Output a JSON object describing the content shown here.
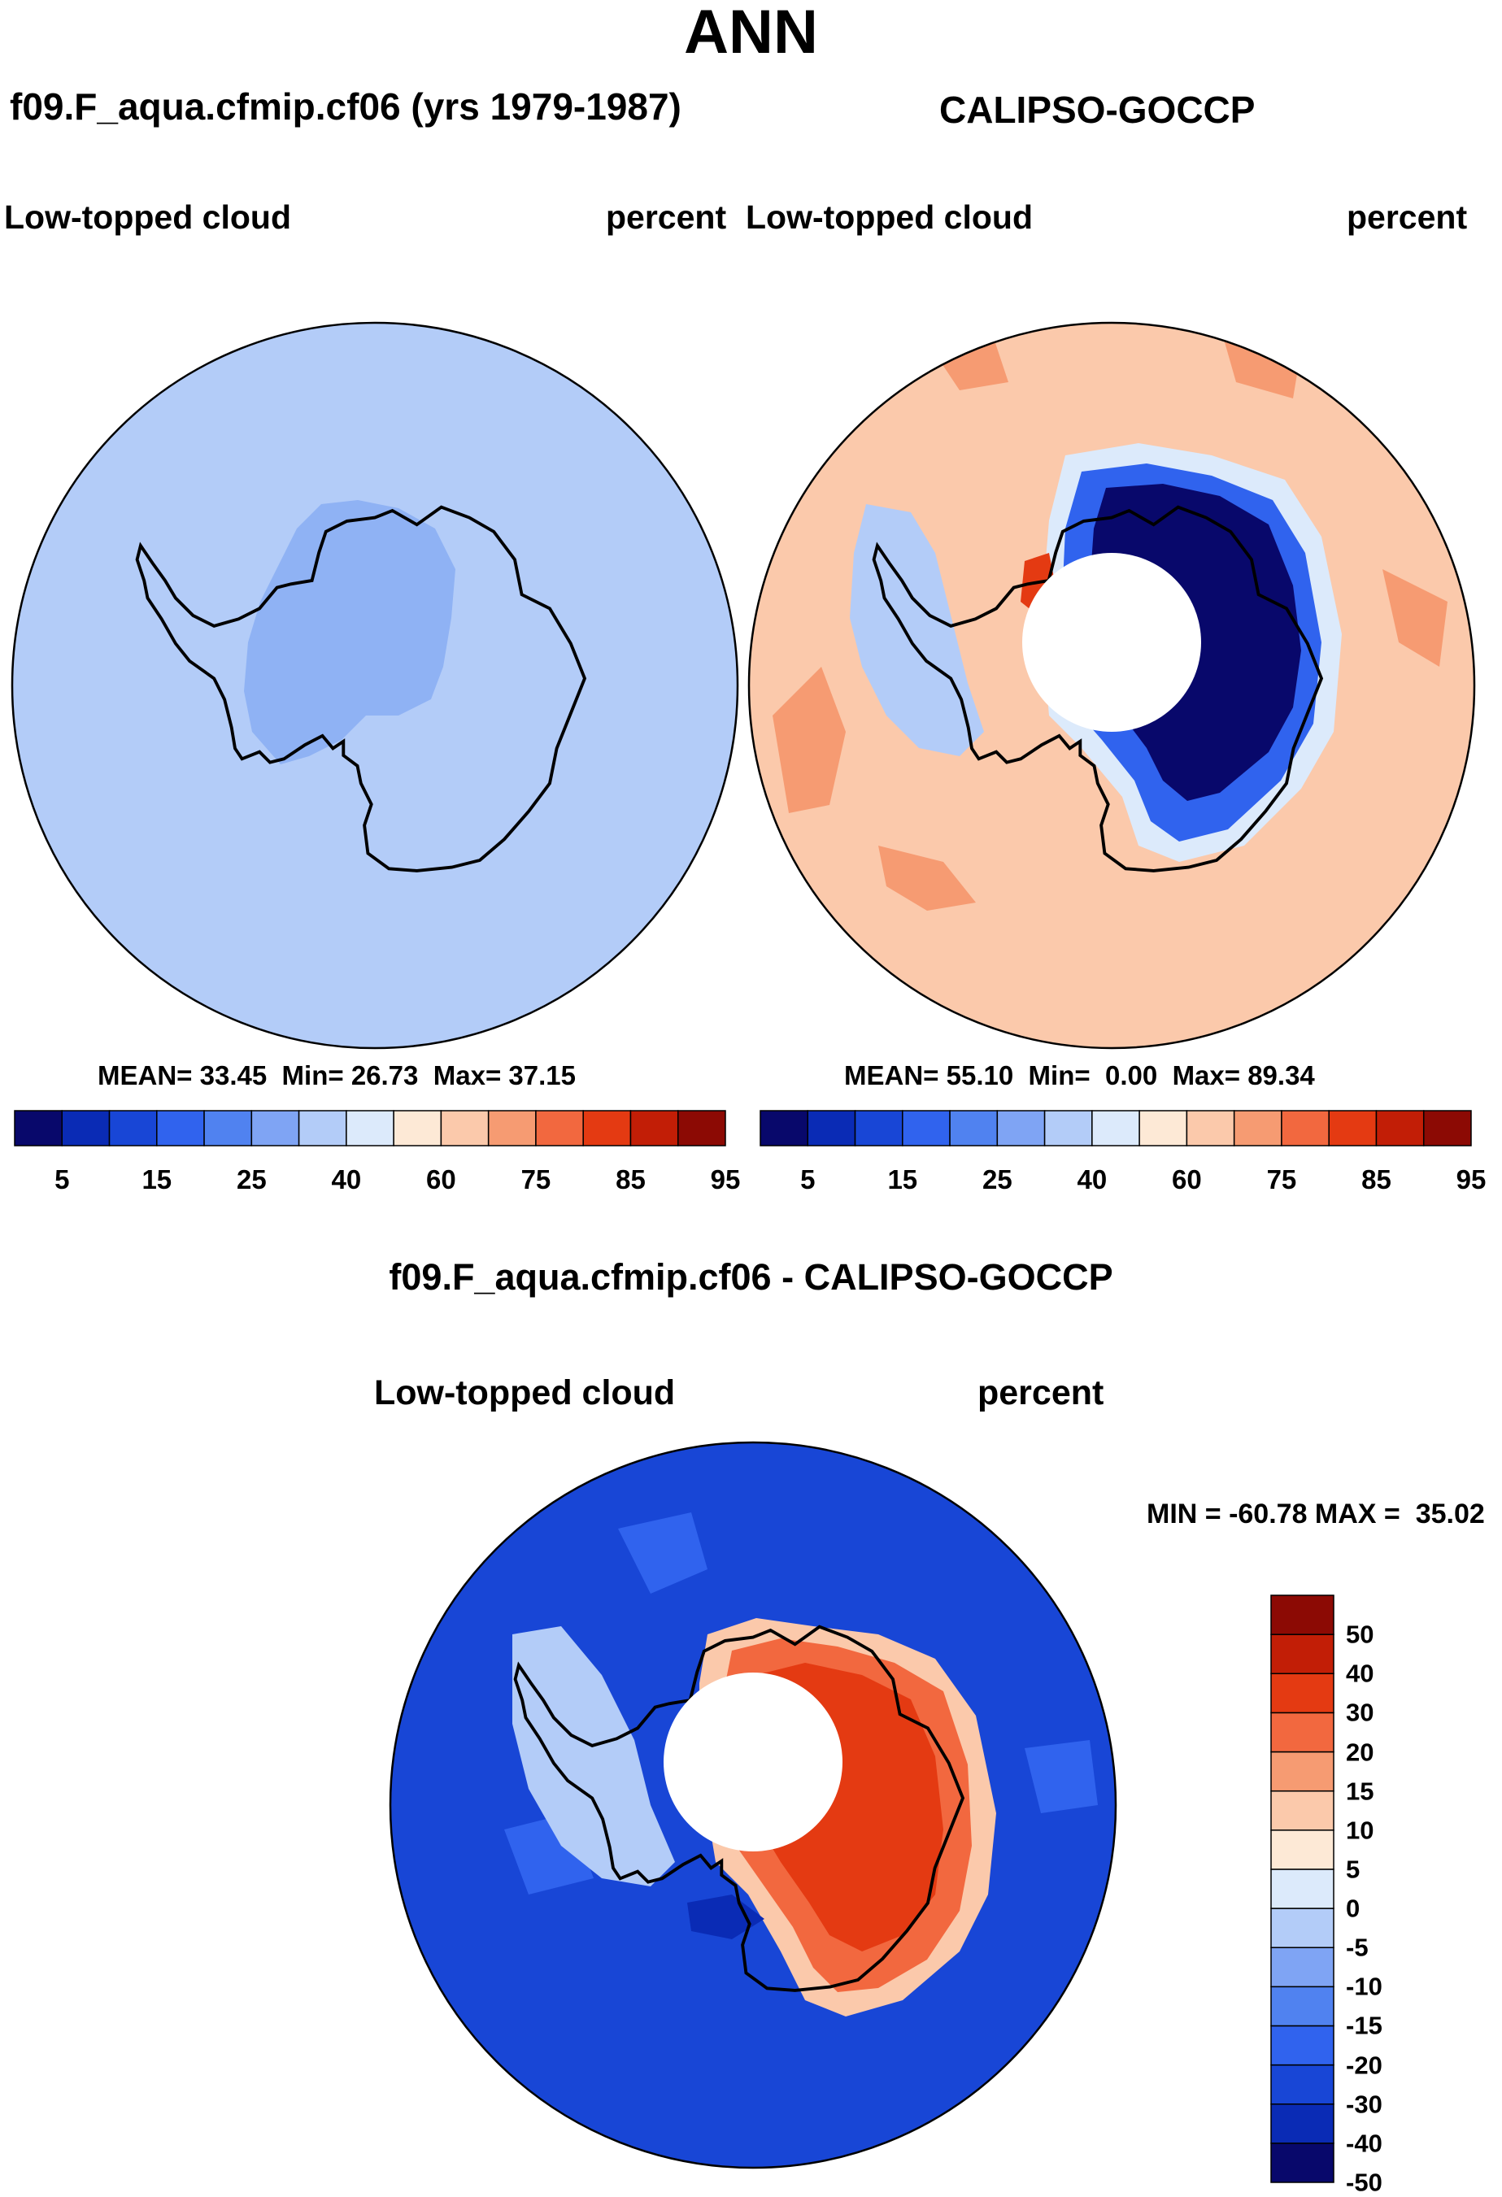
{
  "title": "ANN",
  "model_label": "f09.F_aqua.cfmip.cf06 (yrs 1979-1987)",
  "obs_label": "CALIPSO-GOCCP",
  "panels": {
    "model": {
      "variable": "Low-topped cloud",
      "units": "percent",
      "mean": "33.45",
      "min": "26.73",
      "max": "37.15"
    },
    "obs": {
      "variable": "Low-topped cloud",
      "units": "percent",
      "mean": "55.10",
      "min": "0.00",
      "max": "89.34"
    },
    "diff": {
      "title": "f09.F_aqua.cfmip.cf06 - CALIPSO-GOCCP",
      "variable": "Low-topped cloud",
      "units": "percent",
      "min": "-60.78",
      "max": "35.02"
    }
  },
  "stat_labels": {
    "mean": "MEAN=",
    "min": "Min=",
    "max": "Max="
  },
  "abs_colorbar": {
    "colors": [
      "#08086b",
      "#0a2bb5",
      "#1846d6",
      "#3063ee",
      "#5082f0",
      "#7fa4f4",
      "#b3ccf8",
      "#dceafb",
      "#fde9d6",
      "#fbc9ab",
      "#f69b72",
      "#f2683f",
      "#e43a12",
      "#c21e06",
      "#8c0a04"
    ],
    "tick_labels": [
      "5",
      "15",
      "25",
      "40",
      "60",
      "75",
      "85",
      "95"
    ]
  },
  "diff_colorbar": {
    "colors": [
      "#08086b",
      "#0a2bb5",
      "#1846d6",
      "#3063ee",
      "#5082f0",
      "#7fa4f4",
      "#b3ccf8",
      "#dceafb",
      "#fde9d6",
      "#fbc9ab",
      "#f69b72",
      "#f2683f",
      "#e43a12",
      "#c21e06",
      "#8c0a04"
    ],
    "tick_labels": [
      "50",
      "40",
      "30",
      "20",
      "15",
      "10",
      "5",
      "0",
      "-5",
      "-10",
      "-15",
      "-20",
      "-30",
      "-40",
      "-50"
    ]
  },
  "chart_data": [
    {
      "type": "heatmap",
      "projection": "south-polar-stereographic",
      "field": "Low-topped cloud",
      "units": "percent",
      "source": "f09.F_aqua.cfmip.cf06",
      "mean": 33.45,
      "min": 26.73,
      "max": 37.15,
      "ocean_value": 35,
      "antarctic_interior_value": 30
    },
    {
      "type": "heatmap",
      "projection": "south-polar-stereographic",
      "field": "Low-topped cloud",
      "units": "percent",
      "source": "CALIPSO-GOCCP",
      "mean": 55.1,
      "min": 0.0,
      "max": 89.34,
      "ocean_value": 65,
      "east_antarctica_value": 3,
      "pole_missing": true
    },
    {
      "type": "heatmap",
      "projection": "south-polar-stereographic",
      "field": "Low-topped cloud difference",
      "units": "percent",
      "min": -60.78,
      "max": 35.02,
      "ocean_value": -25,
      "east_antarctica_value": 30,
      "pole_missing": true
    }
  ]
}
